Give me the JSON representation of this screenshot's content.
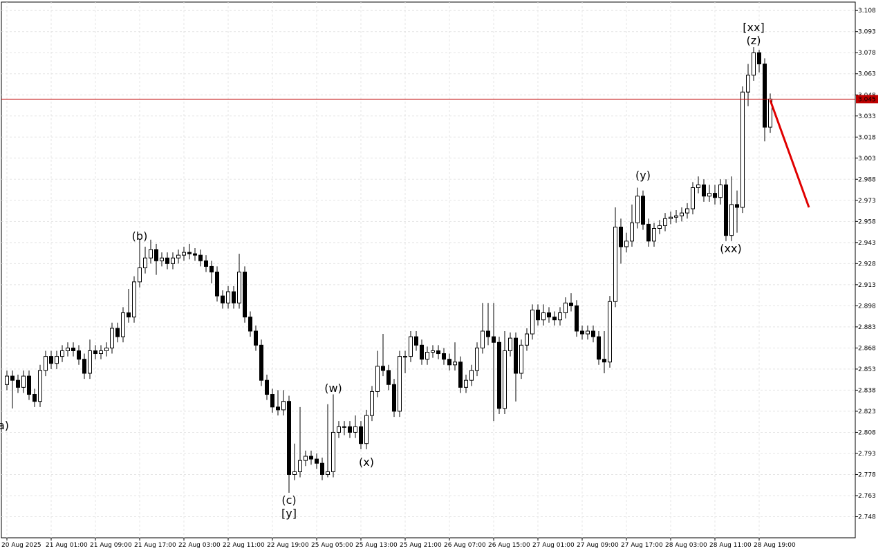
{
  "chart_data": {
    "type": "candlestick",
    "categories": [
      "20 Aug 2025",
      null,
      null,
      null,
      null,
      null,
      null,
      null,
      "21 Aug 01:00",
      null,
      null,
      null,
      null,
      null,
      null,
      null,
      "21 Aug 09:00",
      null,
      null,
      null,
      null,
      null,
      null,
      null,
      "21 Aug 17:00",
      null,
      null,
      null,
      null,
      null,
      null,
      null,
      "22 Aug 03:00",
      null,
      null,
      null,
      null,
      null,
      null,
      null,
      "22 Aug 11:00",
      null,
      null,
      null,
      null,
      null,
      null,
      null,
      "22 Aug 19:00",
      null,
      null,
      null,
      null,
      null,
      null,
      null,
      "25 Aug 05:00",
      null,
      null,
      null,
      null,
      null,
      null,
      null,
      "25 Aug 13:00",
      null,
      null,
      null,
      null,
      null,
      null,
      null,
      "25 Aug 21:00",
      null,
      null,
      null,
      null,
      null,
      null,
      null,
      "26 Aug 07:00",
      null,
      null,
      null,
      null,
      null,
      null,
      null,
      "26 Aug 15:00",
      null,
      null,
      null,
      null,
      null,
      null,
      null,
      "27 Aug 01:00",
      null,
      null,
      null,
      null,
      null,
      null,
      null,
      "27 Aug 09:00",
      null,
      null,
      null,
      null,
      null,
      null,
      null,
      "27 Aug 17:00",
      null,
      null,
      null,
      null,
      null,
      null,
      null,
      "28 Aug 03:00",
      null,
      null,
      null,
      null,
      null,
      null,
      null,
      "28 Aug 11:00",
      null,
      null,
      null,
      null,
      null,
      null,
      null,
      "28 Aug 19:00",
      null,
      null
    ],
    "open": [
      2.842,
      2.848,
      2.845,
      2.84,
      2.848,
      2.835,
      2.83,
      2.852,
      2.862,
      2.857,
      2.862,
      2.866,
      2.868,
      2.866,
      2.86,
      2.85,
      2.866,
      2.864,
      2.866,
      2.868,
      2.882,
      2.876,
      2.893,
      2.89,
      2.915,
      2.925,
      2.932,
      2.938,
      2.93,
      2.932,
      2.928,
      2.932,
      2.934,
      2.936,
      2.935,
      2.934,
      2.93,
      2.926,
      2.922,
      2.905,
      2.9,
      2.908,
      2.9,
      2.922,
      2.89,
      2.88,
      2.87,
      2.845,
      2.835,
      2.826,
      2.824,
      2.83,
      2.778,
      2.78,
      2.788,
      2.791,
      2.789,
      2.786,
      2.778,
      2.78,
      2.808,
      2.812,
      2.812,
      2.808,
      2.812,
      2.8,
      2.82,
      2.837,
      2.855,
      2.852,
      2.842,
      2.823,
      2.862,
      2.862,
      2.876,
      2.87,
      2.86,
      2.865,
      2.866,
      2.864,
      2.86,
      2.856,
      2.858,
      2.84,
      2.845,
      2.852,
      2.868,
      2.88,
      2.876,
      2.872,
      2.825,
      2.866,
      2.875,
      2.85,
      2.87,
      2.878,
      2.895,
      2.888,
      2.893,
      2.89,
      2.888,
      2.893,
      2.9,
      2.898,
      2.88,
      2.878,
      2.88,
      2.876,
      2.86,
      2.858,
      2.901,
      2.954,
      2.94,
      2.944,
      2.957,
      2.976,
      2.956,
      2.944,
      2.953,
      2.955,
      2.96,
      2.961,
      2.962,
      2.964,
      2.967,
      2.982,
      2.984,
      2.976,
      2.978,
      2.975,
      2.984,
      2.948,
      2.97,
      2.968,
      3.05,
      3.062,
      3.078,
      3.07,
      3.025
    ],
    "high": [
      2.852,
      2.852,
      2.849,
      2.852,
      2.852,
      2.839,
      2.856,
      2.866,
      2.866,
      2.866,
      2.87,
      2.872,
      2.872,
      2.87,
      2.864,
      2.874,
      2.87,
      2.87,
      2.872,
      2.886,
      2.886,
      2.897,
      2.91,
      2.919,
      2.945,
      2.94,
      2.945,
      2.942,
      2.936,
      2.936,
      2.936,
      2.938,
      2.94,
      2.942,
      2.939,
      2.938,
      2.934,
      2.93,
      2.926,
      2.909,
      2.912,
      2.912,
      2.935,
      2.926,
      2.894,
      2.884,
      2.874,
      2.849,
      2.839,
      2.838,
      2.838,
      2.834,
      2.8,
      2.826,
      2.795,
      2.795,
      2.793,
      2.79,
      2.828,
      2.835,
      2.816,
      2.816,
      2.816,
      2.82,
      2.816,
      2.824,
      2.841,
      2.866,
      2.878,
      2.856,
      2.846,
      2.866,
      2.866,
      2.88,
      2.88,
      2.874,
      2.869,
      2.87,
      2.87,
      2.868,
      2.864,
      2.872,
      2.862,
      2.849,
      2.856,
      2.872,
      2.9,
      2.9,
      2.9,
      2.876,
      2.88,
      2.879,
      2.879,
      2.874,
      2.882,
      2.899,
      2.899,
      2.899,
      2.897,
      2.894,
      2.897,
      2.904,
      2.907,
      2.902,
      2.884,
      2.884,
      2.884,
      2.88,
      2.88,
      2.905,
      2.968,
      2.96,
      2.95,
      2.97,
      2.982,
      2.98,
      2.96,
      2.957,
      2.959,
      2.964,
      2.965,
      2.966,
      2.968,
      2.971,
      2.986,
      2.99,
      2.988,
      2.984,
      2.984,
      2.988,
      2.988,
      2.99,
      2.98,
      3.054,
      3.07,
      3.082,
      3.08,
      3.074,
      3.049
    ],
    "low": [
      2.838,
      2.825,
      2.836,
      2.836,
      2.831,
      2.826,
      2.826,
      2.848,
      2.853,
      2.853,
      2.858,
      2.862,
      2.862,
      2.856,
      2.846,
      2.846,
      2.86,
      2.86,
      2.862,
      2.864,
      2.872,
      2.872,
      2.886,
      2.886,
      2.911,
      2.921,
      2.928,
      2.92,
      2.926,
      2.924,
      2.924,
      2.928,
      2.93,
      2.931,
      2.93,
      2.926,
      2.922,
      2.914,
      2.901,
      2.896,
      2.896,
      2.896,
      2.896,
      2.886,
      2.876,
      2.866,
      2.841,
      2.831,
      2.822,
      2.82,
      2.82,
      2.765,
      2.774,
      2.776,
      2.784,
      2.785,
      2.782,
      2.774,
      2.776,
      2.776,
      2.804,
      2.806,
      2.804,
      2.804,
      2.796,
      2.796,
      2.816,
      2.833,
      2.848,
      2.838,
      2.819,
      2.819,
      2.85,
      2.858,
      2.866,
      2.856,
      2.856,
      2.861,
      2.86,
      2.856,
      2.852,
      2.852,
      2.836,
      2.836,
      2.841,
      2.848,
      2.864,
      2.87,
      2.816,
      2.821,
      2.821,
      2.862,
      2.83,
      2.846,
      2.866,
      2.874,
      2.884,
      2.884,
      2.886,
      2.884,
      2.884,
      2.889,
      2.894,
      2.876,
      2.874,
      2.874,
      2.872,
      2.856,
      2.85,
      2.854,
      2.897,
      2.928,
      2.936,
      2.94,
      2.953,
      2.952,
      2.94,
      2.94,
      2.949,
      2.951,
      2.956,
      2.957,
      2.958,
      2.96,
      2.963,
      2.978,
      2.972,
      2.972,
      2.97,
      2.97,
      2.944,
      2.944,
      2.95,
      2.964,
      3.04,
      3.058,
      3.064,
      3.015,
      3.021
    ],
    "close": [
      2.848,
      2.845,
      2.84,
      2.848,
      2.835,
      2.83,
      2.852,
      2.862,
      2.857,
      2.862,
      2.866,
      2.868,
      2.866,
      2.86,
      2.85,
      2.866,
      2.864,
      2.866,
      2.868,
      2.882,
      2.876,
      2.893,
      2.89,
      2.915,
      2.925,
      2.932,
      2.938,
      2.93,
      2.932,
      2.928,
      2.932,
      2.934,
      2.936,
      2.935,
      2.934,
      2.93,
      2.926,
      2.922,
      2.905,
      2.9,
      2.908,
      2.9,
      2.922,
      2.89,
      2.88,
      2.87,
      2.845,
      2.835,
      2.826,
      2.824,
      2.83,
      2.778,
      2.78,
      2.788,
      2.791,
      2.789,
      2.786,
      2.778,
      2.78,
      2.808,
      2.812,
      2.812,
      2.808,
      2.812,
      2.8,
      2.82,
      2.837,
      2.855,
      2.852,
      2.842,
      2.823,
      2.862,
      2.862,
      2.876,
      2.87,
      2.86,
      2.865,
      2.866,
      2.864,
      2.86,
      2.856,
      2.858,
      2.84,
      2.845,
      2.852,
      2.868,
      2.88,
      2.876,
      2.872,
      2.825,
      2.866,
      2.875,
      2.85,
      2.87,
      2.878,
      2.895,
      2.888,
      2.893,
      2.89,
      2.888,
      2.893,
      2.9,
      2.898,
      2.88,
      2.878,
      2.88,
      2.876,
      2.86,
      2.858,
      2.901,
      2.954,
      2.94,
      2.944,
      2.957,
      2.976,
      2.956,
      2.944,
      2.953,
      2.955,
      2.96,
      2.961,
      2.962,
      2.964,
      2.967,
      2.982,
      2.984,
      2.976,
      2.978,
      2.975,
      2.984,
      2.948,
      2.97,
      2.968,
      3.05,
      3.062,
      3.078,
      3.07,
      3.025,
      3.045
    ],
    "ylim": [
      2.733,
      3.114
    ],
    "yticks": [
      3.108,
      3.093,
      3.078,
      3.063,
      3.048,
      3.033,
      3.018,
      3.003,
      2.988,
      2.973,
      2.958,
      2.943,
      2.928,
      2.913,
      2.898,
      2.883,
      2.868,
      2.853,
      2.838,
      2.823,
      2.808,
      2.793,
      2.778,
      2.763,
      2.748
    ],
    "grid": true,
    "up_color": "#ffffff",
    "down_color": "#000000",
    "current_price": 3.045,
    "current_price_color": "#c00000",
    "annotations": [
      {
        "text": "a)",
        "color": "#1a1ad0"
      },
      {
        "text": "(b)",
        "color": "#1a1ad0"
      },
      {
        "text": "(c)",
        "color": "#1a1ad0"
      },
      {
        "text": "[y]",
        "color": "#3cc83c"
      },
      {
        "text": "(w)",
        "color": "#1a1ad0"
      },
      {
        "text": "(x)",
        "color": "#1a1ad0"
      },
      {
        "text": "(y)",
        "color": "#1a1ad0"
      },
      {
        "text": "(xx)",
        "color": "#1a1ad0"
      },
      {
        "text": "(z)",
        "color": "#1a1ad0"
      },
      {
        "text": "[xx]",
        "color": "#3cc83c"
      }
    ]
  }
}
